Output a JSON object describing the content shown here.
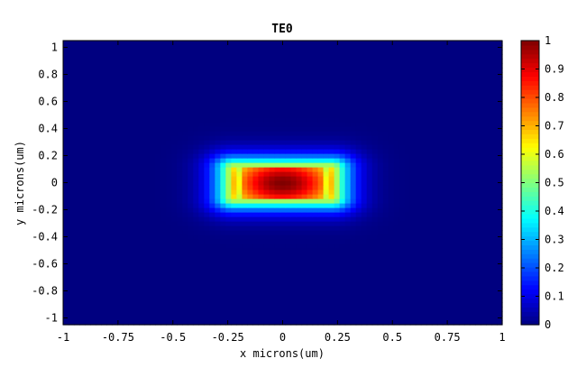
{
  "chart_data": {
    "type": "heatmap",
    "title": "TE0",
    "xlabel": "x microns(um)",
    "ylabel": "y microns(um)",
    "xlim": [
      -1,
      1
    ],
    "ylim": [
      -1.05,
      1.05
    ],
    "x_ticks": [
      -1,
      -0.75,
      -0.5,
      -0.25,
      0,
      0.25,
      0.5,
      0.75,
      1
    ],
    "x_tick_labels": [
      "-1",
      "-0.75",
      "-0.5",
      "-0.25",
      "0",
      "0.25",
      "0.5",
      "0.75",
      "1"
    ],
    "y_ticks": [
      1,
      0.8,
      0.6,
      0.4,
      0.2,
      0,
      -0.2,
      -0.4,
      -0.6,
      -0.8,
      -1
    ],
    "y_tick_labels": [
      "1",
      "0.8",
      "0.6",
      "0.4",
      "0.2",
      "0",
      "-0.2",
      "-0.4",
      "-0.6",
      "-0.8",
      "-1"
    ],
    "colorbar": {
      "range": [
        0,
        1
      ],
      "ticks": [
        1,
        0.9,
        0.8,
        0.7,
        0.6,
        0.5,
        0.4,
        0.3,
        0.2,
        0.1,
        0
      ],
      "tick_labels": [
        "1",
        "0.9",
        "0.8",
        "0.7",
        "0.6",
        "0.5",
        "0.4",
        "0.3",
        "0.2",
        "0.1",
        "0"
      ],
      "colormap": "jet"
    },
    "field": {
      "peak_value": 1,
      "peak_at": [
        0,
        0
      ],
      "core_half_width_um": 0.225,
      "core_half_height_um": 0.11,
      "edge_peaks_x_um": [
        -0.225,
        0.225
      ]
    }
  }
}
